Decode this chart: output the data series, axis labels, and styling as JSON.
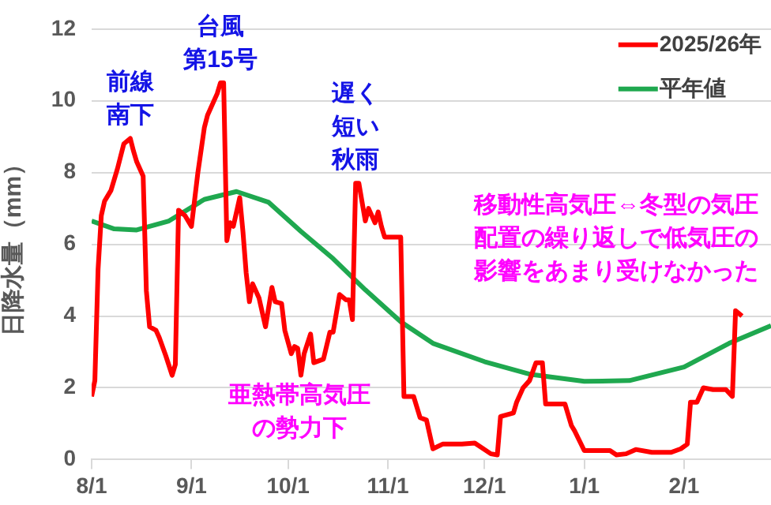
{
  "chart_data": {
    "type": "line",
    "ylabel": "日降水量（mm）",
    "xlim": [
      "2025-08-01",
      "2026-02-28"
    ],
    "xticks": [
      {
        "value": "2025-08-01",
        "label": "8/1"
      },
      {
        "value": "2025-09-01",
        "label": "9/1"
      },
      {
        "value": "2025-10-01",
        "label": "10/1"
      },
      {
        "value": "2025-11-01",
        "label": "11/1"
      },
      {
        "value": "2025-12-01",
        "label": "12/1"
      },
      {
        "value": "2026-01-01",
        "label": "1/1"
      },
      {
        "value": "2026-02-01",
        "label": "2/1"
      }
    ],
    "ylim": [
      0,
      12
    ],
    "yticks": [
      0,
      2,
      4,
      6,
      8,
      10,
      12
    ],
    "grid": "y",
    "legend": "top right",
    "marker": "none",
    "line_style": "solid",
    "series": [
      {
        "name": "2025/26年",
        "color": "#ff0000",
        "x": [
          "2025-08-01",
          "2025-08-02",
          "2025-08-03",
          "2025-08-04",
          "2025-08-05",
          "2025-08-07",
          "2025-08-09",
          "2025-08-11",
          "2025-08-13",
          "2025-08-14",
          "2025-08-15",
          "2025-08-17",
          "2025-08-18",
          "2025-08-19",
          "2025-08-21",
          "2025-08-22",
          "2025-08-24",
          "2025-08-26",
          "2025-08-27",
          "2025-08-28",
          "2025-08-30",
          "2025-09-01",
          "2025-09-03",
          "2025-09-05",
          "2025-09-06",
          "2025-09-09",
          "2025-09-10",
          "2025-09-11",
          "2025-09-12",
          "2025-09-13",
          "2025-09-14",
          "2025-09-16",
          "2025-09-17",
          "2025-09-18",
          "2025-09-19",
          "2025-09-20",
          "2025-09-22",
          "2025-09-24",
          "2025-09-26",
          "2025-09-27",
          "2025-09-29",
          "2025-09-30",
          "2025-10-02",
          "2025-10-03",
          "2025-10-04",
          "2025-10-05",
          "2025-10-06",
          "2025-10-08",
          "2025-10-09",
          "2025-10-12",
          "2025-10-14",
          "2025-10-15",
          "2025-10-17",
          "2025-10-19",
          "2025-10-20",
          "2025-10-21",
          "2025-10-22",
          "2025-10-23",
          "2025-10-25",
          "2025-10-26",
          "2025-10-28",
          "2025-10-29",
          "2025-10-30",
          "2025-10-31",
          "2025-11-05",
          "2025-11-06",
          "2025-11-09",
          "2025-11-11",
          "2025-11-13",
          "2025-11-15",
          "2025-11-18",
          "2025-11-24",
          "2025-11-28",
          "2025-12-03",
          "2025-12-05",
          "2025-12-06",
          "2025-12-08",
          "2025-12-10",
          "2025-12-11",
          "2025-12-13",
          "2025-12-15",
          "2025-12-17",
          "2025-12-19",
          "2025-12-20",
          "2025-12-26",
          "2025-12-28",
          "2025-12-29",
          "2026-01-01",
          "2026-01-09",
          "2026-01-11",
          "2026-01-14",
          "2026-01-17",
          "2026-01-22",
          "2026-01-28",
          "2026-01-31",
          "2026-02-02",
          "2026-02-03",
          "2026-02-05",
          "2026-02-07",
          "2026-02-10",
          "2026-02-14",
          "2026-02-16",
          "2026-02-17",
          "2026-02-19"
        ],
        "values": [
          1.76,
          2.2,
          5.3,
          6.8,
          7.2,
          7.5,
          8.1,
          8.8,
          8.95,
          8.6,
          8.3,
          7.9,
          4.7,
          3.7,
          3.6,
          3.4,
          2.9,
          2.35,
          2.65,
          6.95,
          6.8,
          6.5,
          8.0,
          9.25,
          9.6,
          10.2,
          10.5,
          10.5,
          6.1,
          6.6,
          6.5,
          7.3,
          6.35,
          5.2,
          4.4,
          4.9,
          4.5,
          3.7,
          4.8,
          4.4,
          4.35,
          3.6,
          2.95,
          3.15,
          3.1,
          2.35,
          2.95,
          3.5,
          2.7,
          2.8,
          3.55,
          3.55,
          4.6,
          4.45,
          4.45,
          3.9,
          7.7,
          7.7,
          6.65,
          7.0,
          6.6,
          6.9,
          6.5,
          6.2,
          6.2,
          1.76,
          1.76,
          1.17,
          1.1,
          0.3,
          0.43,
          0.43,
          0.46,
          0.16,
          0.13,
          1.2,
          1.25,
          1.3,
          1.6,
          2.0,
          2.2,
          2.7,
          2.7,
          1.55,
          1.55,
          0.95,
          0.8,
          0.25,
          0.25,
          0.13,
          0.16,
          0.28,
          0.2,
          0.2,
          0.3,
          0.43,
          1.6,
          1.6,
          2.0,
          1.95,
          1.95,
          1.76,
          4.15,
          4.0
        ]
      },
      {
        "name": "平年値",
        "color": "#1fa84f",
        "x": [
          "2025-08-01",
          "2025-08-08",
          "2025-08-15",
          "2025-08-25",
          "2025-09-05",
          "2025-09-15",
          "2025-09-25",
          "2025-10-05",
          "2025-10-15",
          "2025-10-25",
          "2025-11-05",
          "2025-11-15",
          "2025-12-01",
          "2025-12-15",
          "2026-01-01",
          "2026-01-15",
          "2026-02-01",
          "2026-02-15",
          "2026-02-28"
        ],
        "values": [
          6.65,
          6.43,
          6.4,
          6.65,
          7.25,
          7.47,
          7.17,
          6.36,
          5.6,
          4.73,
          3.84,
          3.24,
          2.73,
          2.38,
          2.18,
          2.2,
          2.58,
          3.24,
          3.73
        ]
      }
    ],
    "annotations": [
      {
        "text": "前線南下",
        "x": "2025-08-13",
        "y": 8.95
      },
      {
        "text": "台風第15号",
        "x": "2025-09-10",
        "y": 10.5
      },
      {
        "text": "遅く短い秋雨",
        "x": "2025-10-22",
        "y": 7.7
      },
      "亜熱帯高気圧の勢力下",
      "移動性高気圧⇔冬型の気圧配置の繰り返しで低気圧の影響をあまり受けなかった"
    ]
  }
}
